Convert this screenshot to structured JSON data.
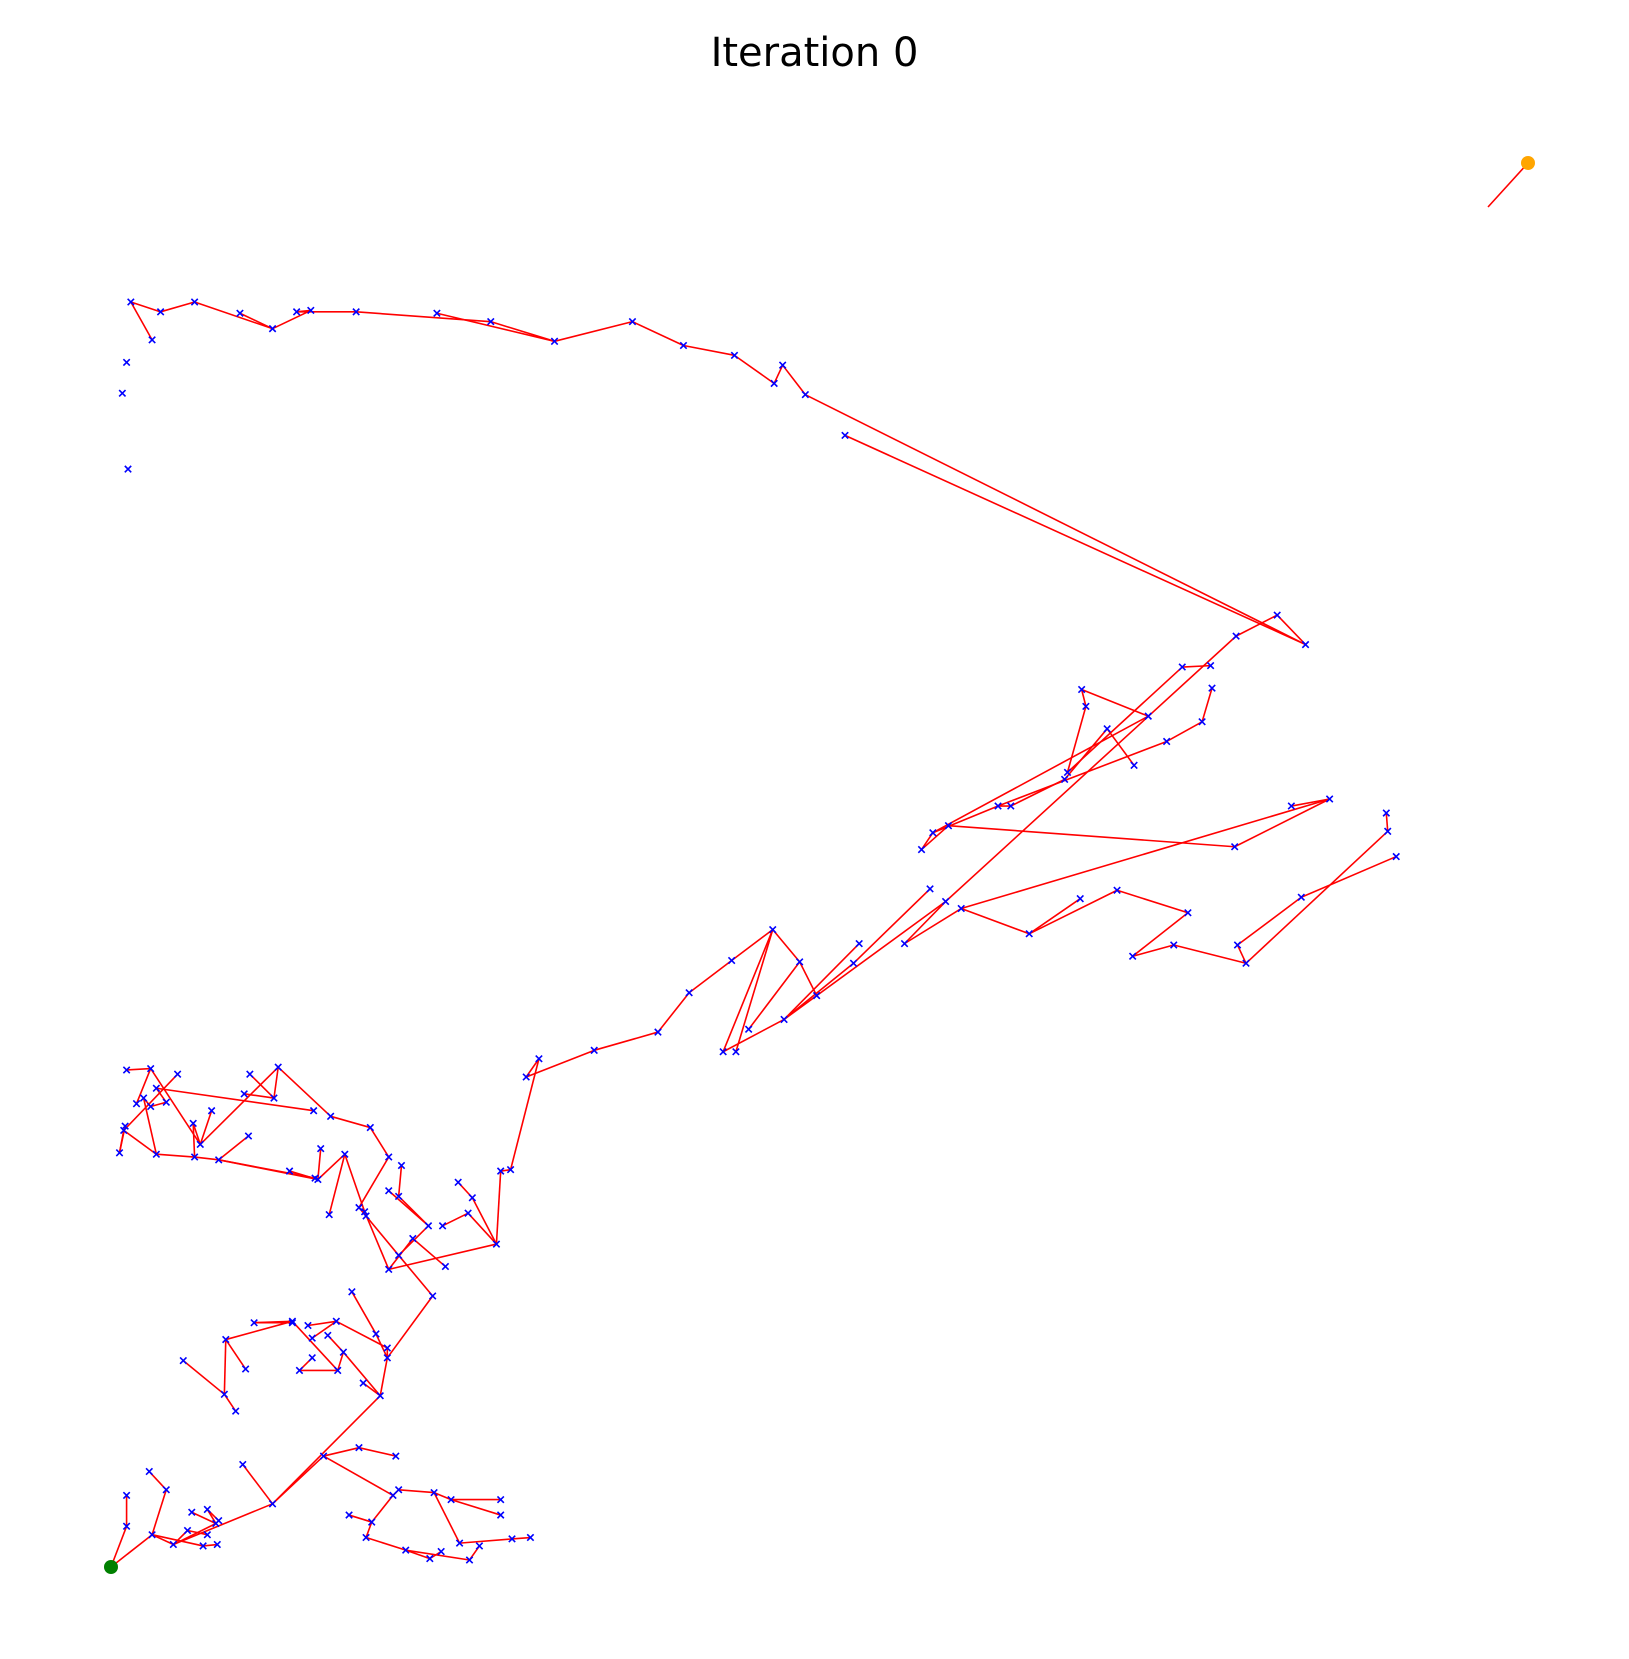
{
  "chart_data": {
    "type": "scatter",
    "title": "Iteration 0",
    "xlabel": "",
    "ylabel": "",
    "xlim": [
      0,
      100
    ],
    "ylim": [
      0,
      100
    ],
    "axes": "off",
    "grid": false,
    "colors": {
      "edge": "#ff0000",
      "node": "#0000ff",
      "start": "#008000",
      "goal": "#ffa500"
    },
    "start": [
      0,
      0
    ],
    "goal": [
      100,
      100
    ],
    "nodes": [
      [
        0,
        0
      ],
      [
        1.1,
        2.9
      ],
      [
        1.1,
        5.1
      ],
      [
        2.7,
        6.8
      ],
      [
        3.9,
        5.5
      ],
      [
        2.9,
        2.3
      ],
      [
        4.4,
        1.6
      ],
      [
        5.4,
        2.6
      ],
      [
        6.8,
        2.3
      ],
      [
        6.5,
        1.5
      ],
      [
        7.5,
        1.6
      ],
      [
        7.4,
        3.1
      ],
      [
        5.7,
        3.9
      ],
      [
        6.8,
        4.1
      ],
      [
        7.6,
        3.3
      ],
      [
        9.3,
        7.3
      ],
      [
        11.4,
        4.5
      ],
      [
        15.0,
        7.9
      ],
      [
        17.5,
        8.5
      ],
      [
        20.1,
        7.9
      ],
      [
        19.9,
        5.1
      ],
      [
        18.4,
        3.2
      ],
      [
        16.8,
        3.7
      ],
      [
        18.0,
        2.1
      ],
      [
        20.8,
        1.2
      ],
      [
        22.5,
        0.6
      ],
      [
        23.3,
        1.1
      ],
      [
        25.3,
        0.5
      ],
      [
        26.0,
        1.5
      ],
      [
        20.3,
        5.5
      ],
      [
        22.8,
        5.3
      ],
      [
        24.0,
        4.8
      ],
      [
        27.5,
        4.8
      ],
      [
        24.6,
        1.7
      ],
      [
        28.3,
        2.0
      ],
      [
        29.6,
        2.1
      ],
      [
        27.5,
        3.7
      ],
      [
        19.0,
        12.2
      ],
      [
        19.5,
        14.9
      ],
      [
        18.7,
        16.6
      ],
      [
        17.8,
        13.1
      ],
      [
        19.5,
        15.6
      ],
      [
        15.9,
        17.5
      ],
      [
        13.9,
        17.2
      ],
      [
        14.2,
        16.3
      ],
      [
        17.0,
        19.6
      ],
      [
        22.7,
        19.3
      ],
      [
        20.3,
        22.2
      ],
      [
        22.4,
        24.3
      ],
      [
        20.3,
        26.4
      ],
      [
        20.5,
        28.6
      ],
      [
        19.6,
        26.8
      ],
      [
        16.4,
        15.3
      ],
      [
        16.0,
        14.0
      ],
      [
        15.3,
        16.5
      ],
      [
        13.3,
        14.0
      ],
      [
        14.2,
        14.9
      ],
      [
        12.8,
        17.5
      ],
      [
        8.1,
        16.2
      ],
      [
        10.1,
        17.4
      ],
      [
        12.8,
        17.4
      ],
      [
        9.5,
        14.1
      ],
      [
        8.0,
        12.3
      ],
      [
        8.8,
        11.1
      ],
      [
        5.1,
        14.7
      ],
      [
        18.0,
        25.0
      ],
      [
        17.5,
        25.6
      ],
      [
        19.6,
        29.2
      ],
      [
        18.3,
        31.3
      ],
      [
        15.5,
        32.1
      ],
      [
        11.8,
        35.6
      ],
      [
        11.5,
        33.4
      ],
      [
        9.4,
        33.7
      ],
      [
        9.8,
        35.1
      ],
      [
        6.3,
        30.1
      ],
      [
        7.1,
        32.5
      ],
      [
        2.8,
        35.5
      ],
      [
        1.1,
        35.4
      ],
      [
        1.8,
        33.0
      ],
      [
        5.8,
        31.6
      ],
      [
        5.9,
        29.2
      ],
      [
        7.6,
        29.0
      ],
      [
        9.7,
        30.7
      ],
      [
        3.2,
        29.4
      ],
      [
        0.9,
        31.1
      ],
      [
        0.6,
        29.5
      ],
      [
        1.0,
        31.4
      ],
      [
        4.7,
        35.1
      ],
      [
        2.3,
        33.4
      ],
      [
        2.8,
        32.8
      ],
      [
        3.9,
        33.1
      ],
      [
        3.2,
        34.1
      ],
      [
        14.3,
        32.5
      ],
      [
        14.4,
        27.7
      ],
      [
        14.6,
        27.6
      ],
      [
        12.6,
        28.2
      ],
      [
        14.8,
        29.8
      ],
      [
        16.5,
        29.4
      ],
      [
        15.4,
        25.1
      ],
      [
        17.9,
        25.3
      ],
      [
        19.6,
        21.2
      ],
      [
        21.3,
        23.4
      ],
      [
        23.6,
        21.4
      ],
      [
        27.2,
        23.0
      ],
      [
        25.5,
        26.3
      ],
      [
        24.5,
        27.4
      ],
      [
        25.2,
        25.2
      ],
      [
        27.5,
        28.2
      ],
      [
        23.4,
        24.3
      ],
      [
        28.2,
        28.3
      ],
      [
        30.2,
        36.2
      ],
      [
        29.3,
        34.9
      ],
      [
        34.1,
        36.8
      ],
      [
        38.6,
        38.1
      ],
      [
        40.8,
        40.9
      ],
      [
        43.8,
        43.2
      ],
      [
        46.7,
        45.4
      ],
      [
        48.6,
        43.1
      ],
      [
        49.8,
        40.7
      ],
      [
        45.0,
        38.3
      ],
      [
        44.1,
        36.7
      ],
      [
        43.2,
        36.7
      ],
      [
        47.5,
        39.0
      ],
      [
        52.4,
        43.0
      ],
      [
        52.8,
        44.4
      ],
      [
        57.8,
        48.3
      ],
      [
        58.9,
        47.4
      ],
      [
        56.0,
        44.4
      ],
      [
        60.0,
        46.9
      ],
      [
        64.8,
        45.1
      ],
      [
        68.4,
        47.6
      ],
      [
        71.0,
        48.2
      ],
      [
        76.0,
        46.6
      ],
      [
        72.1,
        43.5
      ],
      [
        75.0,
        44.3
      ],
      [
        80.1,
        43.0
      ],
      [
        79.5,
        44.3
      ],
      [
        84.0,
        47.7
      ],
      [
        90.7,
        50.6
      ],
      [
        90.1,
        52.4
      ],
      [
        90.0,
        53.7
      ],
      [
        86.0,
        54.7
      ],
      [
        83.3,
        54.2
      ],
      [
        79.3,
        51.3
      ],
      [
        59.1,
        52.8
      ],
      [
        57.2,
        51.1
      ],
      [
        58.0,
        52.3
      ],
      [
        62.6,
        54.2
      ],
      [
        63.5,
        54.2
      ],
      [
        67.3,
        56.1
      ],
      [
        70.3,
        59.7
      ],
      [
        72.2,
        57.1
      ],
      [
        74.5,
        58.8
      ],
      [
        77.0,
        60.2
      ],
      [
        77.7,
        62.6
      ],
      [
        73.2,
        60.6
      ],
      [
        68.5,
        62.5
      ],
      [
        68.8,
        61.3
      ],
      [
        67.5,
        56.6
      ],
      [
        75.6,
        64.1
      ],
      [
        77.6,
        64.2
      ],
      [
        79.4,
        66.3
      ],
      [
        82.3,
        67.8
      ],
      [
        84.3,
        65.7
      ],
      [
        51.8,
        80.6
      ],
      [
        49.0,
        83.5
      ],
      [
        47.4,
        85.6
      ],
      [
        46.8,
        84.3
      ],
      [
        44.0,
        86.3
      ],
      [
        40.4,
        87.0
      ],
      [
        36.8,
        88.7
      ],
      [
        31.3,
        87.3
      ],
      [
        26.8,
        88.7
      ],
      [
        23.0,
        89.3
      ],
      [
        17.3,
        89.4
      ],
      [
        13.1,
        89.4
      ],
      [
        14.1,
        89.5
      ],
      [
        11.4,
        88.2
      ],
      [
        9.1,
        89.3
      ],
      [
        5.9,
        90.1
      ],
      [
        3.5,
        89.4
      ],
      [
        1.4,
        90.1
      ],
      [
        2.9,
        87.4
      ],
      [
        1.1,
        85.8
      ],
      [
        0.8,
        83.6
      ],
      [
        1.2,
        78.2
      ]
    ],
    "edges": [
      [
        0,
        1
      ],
      [
        1,
        2
      ],
      [
        0,
        5
      ],
      [
        5,
        4
      ],
      [
        4,
        3
      ],
      [
        5,
        6
      ],
      [
        6,
        7
      ],
      [
        7,
        8
      ],
      [
        5,
        9
      ],
      [
        9,
        10
      ],
      [
        6,
        11
      ],
      [
        11,
        12
      ],
      [
        11,
        13
      ],
      [
        13,
        14
      ],
      [
        6,
        16
      ],
      [
        16,
        15
      ],
      [
        16,
        17
      ],
      [
        17,
        18
      ],
      [
        18,
        19
      ],
      [
        17,
        20
      ],
      [
        20,
        21
      ],
      [
        21,
        22
      ],
      [
        21,
        23
      ],
      [
        23,
        24
      ],
      [
        24,
        25
      ],
      [
        25,
        26
      ],
      [
        24,
        27
      ],
      [
        27,
        28
      ],
      [
        20,
        29
      ],
      [
        29,
        30
      ],
      [
        30,
        31
      ],
      [
        31,
        32
      ],
      [
        30,
        33
      ],
      [
        33,
        34
      ],
      [
        34,
        35
      ],
      [
        31,
        36
      ],
      [
        16,
        37
      ],
      [
        37,
        38
      ],
      [
        38,
        39
      ],
      [
        37,
        40
      ],
      [
        38,
        41
      ],
      [
        41,
        42
      ],
      [
        42,
        43
      ],
      [
        42,
        44
      ],
      [
        39,
        45
      ],
      [
        38,
        46
      ],
      [
        46,
        47
      ],
      [
        47,
        48
      ],
      [
        48,
        49
      ],
      [
        49,
        50
      ],
      [
        48,
        51
      ],
      [
        37,
        52
      ],
      [
        52,
        53
      ],
      [
        52,
        54
      ],
      [
        53,
        55
      ],
      [
        55,
        56
      ],
      [
        53,
        57
      ],
      [
        57,
        58
      ],
      [
        57,
        59
      ],
      [
        59,
        60
      ],
      [
        58,
        61
      ],
      [
        58,
        62
      ],
      [
        62,
        63
      ],
      [
        62,
        64
      ],
      [
        47,
        65
      ],
      [
        65,
        66
      ],
      [
        66,
        67
      ],
      [
        67,
        68
      ],
      [
        68,
        69
      ],
      [
        69,
        70
      ],
      [
        70,
        71
      ],
      [
        71,
        72
      ],
      [
        71,
        73
      ],
      [
        70,
        74
      ],
      [
        74,
        75
      ],
      [
        74,
        76
      ],
      [
        76,
        77
      ],
      [
        76,
        78
      ],
      [
        74,
        79
      ],
      [
        79,
        80
      ],
      [
        80,
        81
      ],
      [
        81,
        82
      ],
      [
        80,
        83
      ],
      [
        83,
        84
      ],
      [
        84,
        85
      ],
      [
        85,
        86
      ],
      [
        84,
        87
      ],
      [
        83,
        88
      ],
      [
        88,
        89
      ],
      [
        89,
        90
      ],
      [
        90,
        91
      ],
      [
        91,
        92
      ],
      [
        81,
        93
      ],
      [
        81,
        94
      ],
      [
        94,
        95
      ],
      [
        94,
        96
      ],
      [
        94,
        97
      ],
      [
        97,
        98
      ],
      [
        97,
        99
      ],
      [
        99,
        100
      ],
      [
        100,
        101
      ],
      [
        101,
        102
      ],
      [
        100,
        103
      ],
      [
        103,
        104
      ],
      [
        104,
        105
      ],
      [
        103,
        106
      ],
      [
        103,
        107
      ],
      [
        106,
        108
      ],
      [
        107,
        109
      ],
      [
        109,
        110
      ],
      [
        110,
        111
      ],
      [
        111,
        112
      ],
      [
        112,
        113
      ],
      [
        113,
        114
      ],
      [
        114,
        115
      ],
      [
        115,
        116
      ],
      [
        116,
        117
      ],
      [
        117,
        118
      ],
      [
        117,
        119
      ],
      [
        116,
        120
      ],
      [
        116,
        121
      ],
      [
        121,
        122
      ],
      [
        122,
        123
      ],
      [
        122,
        124
      ],
      [
        123,
        125
      ],
      [
        122,
        126
      ],
      [
        126,
        127
      ],
      [
        127,
        128
      ],
      [
        128,
        129
      ],
      [
        129,
        130
      ],
      [
        129,
        131
      ],
      [
        131,
        132
      ],
      [
        132,
        133
      ],
      [
        133,
        134
      ],
      [
        134,
        135
      ],
      [
        135,
        136
      ],
      [
        136,
        137
      ],
      [
        137,
        138
      ],
      [
        135,
        139
      ],
      [
        139,
        140
      ],
      [
        128,
        141
      ],
      [
        141,
        142
      ],
      [
        141,
        143
      ],
      [
        143,
        144
      ],
      [
        144,
        145
      ],
      [
        145,
        146
      ],
      [
        146,
        147
      ],
      [
        147,
        148
      ],
      [
        148,
        149
      ],
      [
        149,
        150
      ],
      [
        150,
        151
      ],
      [
        147,
        152
      ],
      [
        152,
        153
      ],
      [
        153,
        154
      ],
      [
        146,
        155
      ],
      [
        155,
        156
      ],
      [
        156,
        157
      ],
      [
        157,
        158
      ],
      [
        158,
        159
      ],
      [
        159,
        160
      ],
      [
        126,
        161
      ],
      [
        161,
        162
      ],
      [
        162,
        163
      ],
      [
        163,
        164
      ],
      [
        163,
        165
      ],
      [
        165,
        166
      ],
      [
        166,
        167
      ],
      [
        167,
        168
      ],
      [
        168,
        169
      ],
      [
        169,
        170
      ],
      [
        170,
        171
      ],
      [
        171,
        172
      ],
      [
        171,
        173
      ],
      [
        172,
        174
      ],
      [
        174,
        175
      ],
      [
        175,
        176
      ],
      [
        176,
        177
      ],
      [
        177,
        178
      ],
      [
        177,
        179
      ],
      [
        179,
        180
      ],
      [
        180,
        181
      ],
      [
        181,
        182
      ]
    ]
  }
}
